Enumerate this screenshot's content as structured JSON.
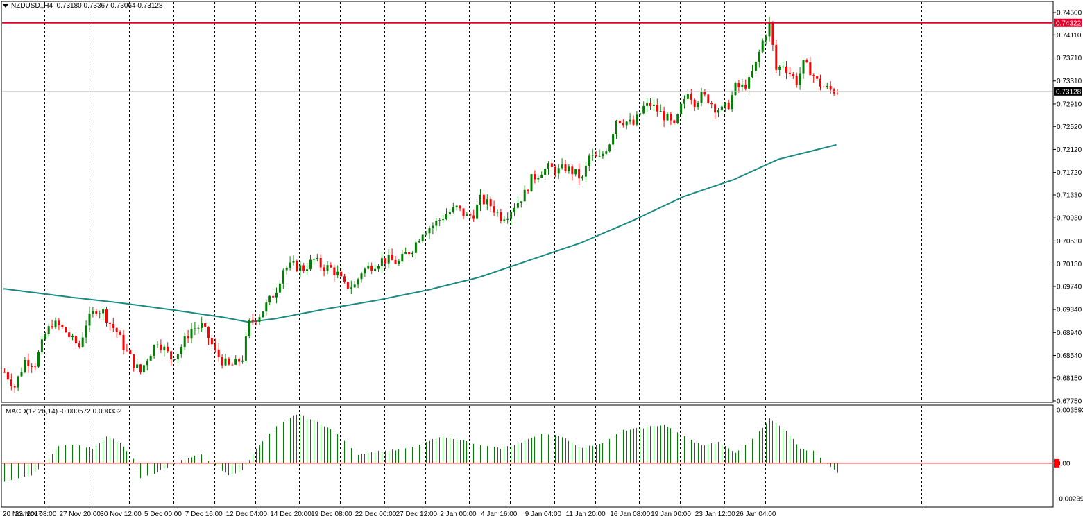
{
  "header": {
    "symbol": "NZDUSD,,H4",
    "ohlc": "0.73180 0.73367 0.73064 0.73128"
  },
  "macd_header": {
    "label": "MACD(12,26,14) -0.000572 0.000332"
  },
  "colors": {
    "bull": "#008000",
    "bear": "#ff0000",
    "ma": "#1a8a82",
    "resistance": "#e0002a",
    "macd": "#008000",
    "signal": "#ff0000",
    "grid": "#000000"
  },
  "price_axis_labels": [
    "0.74500",
    "0.74110",
    "0.73710",
    "0.73310",
    "0.72910",
    "0.72520",
    "0.72120",
    "0.71720",
    "0.71330",
    "0.70930",
    "0.70530",
    "0.70130",
    "0.69740",
    "0.69340",
    "0.68940",
    "0.68540",
    "0.68150",
    "0.67750"
  ],
  "macd_axis_labels": [
    "0.003593",
    "0.00",
    "-0.00239"
  ],
  "current_price_label": "0.73128",
  "resistance_label": "0.74322",
  "time_labels": [
    "20 Nov 2017",
    "23 Nov 08:00",
    "27 Nov 20:00",
    "30 Nov 12:00",
    "5 Dec 00:00",
    "7 Dec 16:00",
    "12 Dec 04:00",
    "14 Dec 20:00",
    "19 Dec 08:00",
    "22 Dec 00:00",
    "27 Dec 12:00",
    "2 Jan 00:00",
    "4 Jan 16:00",
    "9 Jan 04:00",
    "11 Jan 20:00",
    "16 Jan 08:00",
    "19 Jan 00:00",
    "23 Jan 12:00",
    "26 Jan 04:00"
  ],
  "chart_data": {
    "type": "candlestick",
    "symbol": "NZDUSD",
    "timeframe": "H4",
    "ylim": [
      0.6775,
      0.745
    ],
    "resistance": 0.74322,
    "current": 0.73128,
    "close_path": [
      [
        0,
        0.6825
      ],
      [
        3,
        0.68
      ],
      [
        6,
        0.6845
      ],
      [
        9,
        0.684
      ],
      [
        12,
        0.689
      ],
      [
        14,
        0.691
      ],
      [
        16,
        0.6905
      ],
      [
        18,
        0.6895
      ],
      [
        20,
        0.688
      ],
      [
        22,
        0.687
      ],
      [
        24,
        0.691
      ],
      [
        27,
        0.6935
      ],
      [
        29,
        0.693
      ],
      [
        31,
        0.691
      ],
      [
        33,
        0.6895
      ],
      [
        35,
        0.687
      ],
      [
        38,
        0.684
      ],
      [
        40,
        0.6825
      ],
      [
        42,
        0.685
      ],
      [
        45,
        0.688
      ],
      [
        47,
        0.6865
      ],
      [
        49,
        0.685
      ],
      [
        51,
        0.686
      ],
      [
        53,
        0.688
      ],
      [
        55,
        0.69
      ],
      [
        58,
        0.6905
      ],
      [
        60,
        0.6885
      ],
      [
        62,
        0.686
      ],
      [
        64,
        0.6845
      ],
      [
        66,
        0.6835
      ],
      [
        68,
        0.684
      ],
      [
        70,
        0.685
      ],
      [
        72,
        0.691
      ],
      [
        75,
        0.6925
      ],
      [
        78,
        0.695
      ],
      [
        80,
        0.697
      ],
      [
        82,
        0.7005
      ],
      [
        85,
        0.701
      ],
      [
        88,
        0.7005
      ],
      [
        91,
        0.702
      ],
      [
        93,
        0.701
      ],
      [
        96,
        0.7005
      ],
      [
        98,
        0.6995
      ],
      [
        100,
        0.6975
      ],
      [
        103,
        0.6975
      ],
      [
        105,
        0.7
      ],
      [
        108,
        0.701
      ],
      [
        111,
        0.702
      ],
      [
        113,
        0.702
      ],
      [
        116,
        0.7015
      ],
      [
        118,
        0.703
      ],
      [
        120,
        0.704
      ],
      [
        123,
        0.707
      ],
      [
        126,
        0.708
      ],
      [
        128,
        0.709
      ],
      [
        130,
        0.71
      ],
      [
        133,
        0.711
      ],
      [
        136,
        0.7095
      ],
      [
        138,
        0.71
      ],
      [
        140,
        0.7125
      ],
      [
        143,
        0.7115
      ],
      [
        146,
        0.7095
      ],
      [
        148,
        0.71
      ],
      [
        150,
        0.7115
      ],
      [
        153,
        0.7135
      ],
      [
        155,
        0.716
      ],
      [
        158,
        0.7175
      ],
      [
        160,
        0.718
      ],
      [
        163,
        0.7175
      ],
      [
        165,
        0.718
      ],
      [
        168,
        0.717
      ],
      [
        170,
        0.716
      ],
      [
        172,
        0.72
      ],
      [
        175,
        0.7195
      ],
      [
        178,
        0.7225
      ],
      [
        180,
        0.7265
      ],
      [
        183,
        0.726
      ],
      [
        185,
        0.7255
      ],
      [
        188,
        0.7285
      ],
      [
        190,
        0.729
      ],
      [
        193,
        0.7275
      ],
      [
        195,
        0.7265
      ],
      [
        197,
        0.725
      ],
      [
        199,
        0.7285
      ],
      [
        201,
        0.7315
      ],
      [
        203,
        0.7295
      ],
      [
        205,
        0.7305
      ],
      [
        207,
        0.73
      ],
      [
        209,
        0.7285
      ],
      [
        211,
        0.728
      ],
      [
        213,
        0.729
      ],
      [
        215,
        0.732
      ],
      [
        217,
        0.732
      ],
      [
        219,
        0.733
      ],
      [
        221,
        0.736
      ],
      [
        223,
        0.74
      ],
      [
        225,
        0.743
      ],
      [
        227,
        0.735
      ],
      [
        229,
        0.736
      ],
      [
        231,
        0.7345
      ],
      [
        233,
        0.733
      ],
      [
        235,
        0.736
      ],
      [
        237,
        0.735
      ],
      [
        239,
        0.733
      ],
      [
        241,
        0.732
      ],
      [
        243,
        0.7315
      ],
      [
        245,
        0.7313
      ]
    ],
    "ma_path": [
      [
        0,
        0.697
      ],
      [
        20,
        0.6955
      ],
      [
        35,
        0.6945
      ],
      [
        50,
        0.6933
      ],
      [
        65,
        0.692
      ],
      [
        72,
        0.6912
      ],
      [
        80,
        0.6918
      ],
      [
        95,
        0.6935
      ],
      [
        110,
        0.695
      ],
      [
        125,
        0.6968
      ],
      [
        140,
        0.699
      ],
      [
        155,
        0.702
      ],
      [
        170,
        0.705
      ],
      [
        185,
        0.7088
      ],
      [
        200,
        0.713
      ],
      [
        215,
        0.716
      ],
      [
        228,
        0.7195
      ],
      [
        245,
        0.722
      ]
    ],
    "macd_ylim": [
      -0.00239,
      0.003593
    ],
    "macd_path": [
      [
        0,
        -0.0012
      ],
      [
        8,
        -0.0008
      ],
      [
        12,
        0.0
      ],
      [
        16,
        0.0012
      ],
      [
        22,
        0.0012
      ],
      [
        26,
        0.001
      ],
      [
        30,
        0.0018
      ],
      [
        34,
        0.0014
      ],
      [
        38,
        0.0003
      ],
      [
        40,
        -0.001
      ],
      [
        45,
        -0.0006
      ],
      [
        52,
        0.0002
      ],
      [
        58,
        0.0006
      ],
      [
        62,
        -0.0002
      ],
      [
        66,
        -0.0008
      ],
      [
        70,
        -0.0005
      ],
      [
        74,
        0.001
      ],
      [
        80,
        0.0025
      ],
      [
        86,
        0.0033
      ],
      [
        92,
        0.0028
      ],
      [
        98,
        0.002
      ],
      [
        104,
        0.0006
      ],
      [
        110,
        0.0008
      ],
      [
        116,
        0.0009
      ],
      [
        122,
        0.0012
      ],
      [
        128,
        0.0018
      ],
      [
        134,
        0.0016
      ],
      [
        140,
        0.0012
      ],
      [
        146,
        0.001
      ],
      [
        152,
        0.0014
      ],
      [
        158,
        0.002
      ],
      [
        164,
        0.0018
      ],
      [
        170,
        0.001
      ],
      [
        176,
        0.0014
      ],
      [
        182,
        0.0022
      ],
      [
        188,
        0.0024
      ],
      [
        194,
        0.0026
      ],
      [
        200,
        0.0018
      ],
      [
        205,
        0.0012
      ],
      [
        210,
        0.0014
      ],
      [
        215,
        0.0007
      ],
      [
        220,
        0.0016
      ],
      [
        225,
        0.003
      ],
      [
        230,
        0.0022
      ],
      [
        234,
        0.001
      ],
      [
        238,
        0.0008
      ],
      [
        242,
        0.0
      ],
      [
        245,
        -0.0006
      ]
    ],
    "time_label_bars": [
      0,
      12,
      25,
      37,
      50,
      62,
      74,
      87,
      99,
      112,
      124,
      137,
      149,
      162,
      174,
      187,
      199,
      212,
      224
    ]
  }
}
